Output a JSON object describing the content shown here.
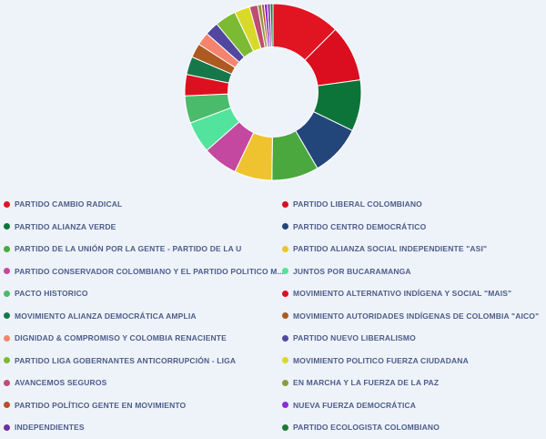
{
  "page": {
    "background_color": "#eef3fa",
    "legend_text_color": "#4e5c8a",
    "slice_border_color": "#ffffff"
  },
  "chart_data": {
    "type": "pie",
    "subtype": "donut",
    "title": "",
    "legend_position": "bottom",
    "legend_columns": 2,
    "start_angle_deg": 0,
    "inner_radius_pct": 51,
    "values_unit": "percent-of-ring (estimated from arc angles)",
    "total": 100,
    "segments": [
      {
        "label": "PARTIDO CAMBIO RADICAL",
        "value": 12.5,
        "color": "#e11422"
      },
      {
        "label": "PARTIDO LIBERAL COLOMBIANO",
        "value": 10.3,
        "color": "#da0e1e"
      },
      {
        "label": "PARTIDO ALIANZA VERDE",
        "value": 9.4,
        "color": "#0c7438"
      },
      {
        "label": "PARTIDO CENTRO DEMOCRÁTICO",
        "value": 9.4,
        "color": "#22457a"
      },
      {
        "label": "PARTIDO DE LA UNIÓN POR LA GENTE - PARTIDO DE LA U",
        "value": 8.6,
        "color": "#4ba83f"
      },
      {
        "label": "PARTIDO ALIANZA SOCIAL INDEPENDIENTE \"ASI\"",
        "value": 6.9,
        "color": "#efc32f"
      },
      {
        "label": "PARTIDO CONSERVADOR COLOMBIANO Y EL PARTIDO POLITICO M...",
        "value": 6.4,
        "color": "#c4489f"
      },
      {
        "label": "JUNTOS POR BUCARAMANGA",
        "value": 5.8,
        "color": "#52e39c"
      },
      {
        "label": "PACTO HISTORICO",
        "value": 5.0,
        "color": "#49bb6a"
      },
      {
        "label": "MOVIMIENTO ALTERNATIVO INDÍGENA Y SOCIAL \"MAIS\"",
        "value": 3.9,
        "color": "#dd1020"
      },
      {
        "label": "MOVIMIENTO ALIANZA DEMOCRÁTICA AMPLIA",
        "value": 3.3,
        "color": "#16784a"
      },
      {
        "label": "MOVIMIENTO AUTORIDADES INDÍGENAS DE COLOMBIA \"AICO\"",
        "value": 2.6,
        "color": "#ac5a22"
      },
      {
        "label": "DIGNIDAD & COMPROMISO Y COLOMBIA RENACIENTE",
        "value": 2.4,
        "color": "#f5846f"
      },
      {
        "label": "PARTIDO NUEVO LIBERALISMO",
        "value": 2.5,
        "color": "#5247a0"
      },
      {
        "label": "PARTIDO LIGA GOBERNANTES ANTICORRUPCIÓN - LIGA",
        "value": 3.9,
        "color": "#7cba34"
      },
      {
        "label": "MOVIMIENTO POLITICO FUERZA CIUDADANA",
        "value": 2.8,
        "color": "#d9d92a"
      },
      {
        "label": "AVANCEMOS SEGUROS",
        "value": 1.5,
        "color": "#bd4d72"
      },
      {
        "label": "EN MARCHA Y LA FUERZA DE LA PAZ",
        "value": 0.7,
        "color": "#8f9a3e"
      },
      {
        "label": "PARTIDO POLÍTICO GENTE EN MOVIMIENTO",
        "value": 0.5,
        "color": "#b8502d"
      },
      {
        "label": "NUEVA FUERZA DEMOCRÁTICA",
        "value": 0.6,
        "color": "#8e2bd8"
      },
      {
        "label": "INDEPENDIENTES",
        "value": 0.5,
        "color": "#6f2f9c"
      },
      {
        "label": "PARTIDO ECOLOGISTA COLOMBIANO",
        "value": 0.5,
        "color": "#1d7836"
      }
    ]
  }
}
